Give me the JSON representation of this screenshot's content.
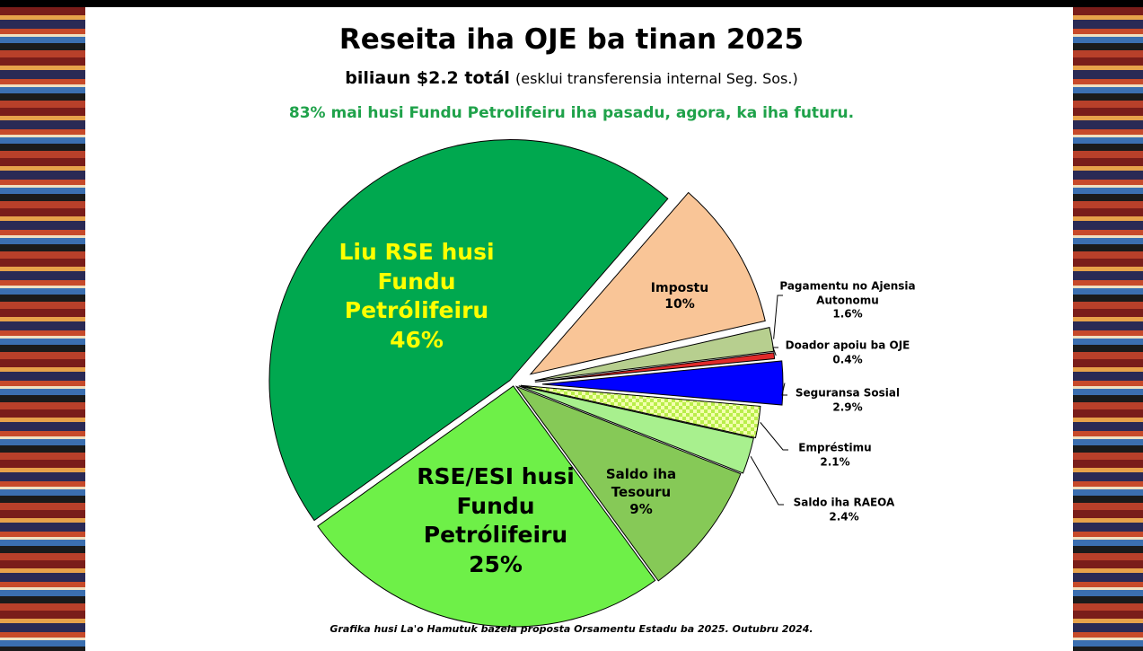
{
  "chart_data": {
    "type": "pie",
    "title": "Reseita iha OJE ba tinan 2025",
    "subtitle_bold": "biliaun $2.2 totál",
    "subtitle_note": "(esklui transferensia internal Seg. Sos.)",
    "highlight": "83% mai husi Fundu Petrolifeiru iha pasadu, agora, ka iha futuru.",
    "footnote": "Grafika husi La'o Hamutuk bazeia proposta Orsamentu Estadu ba 2025. Outubru 2024.",
    "categories": [
      "Impostu",
      "Pagamentu no Ajensia Autonomu",
      "Doador apoiu ba OJE",
      "Seguransa Sosial",
      "Empréstimu",
      "Saldo iha RAEOA",
      "Saldo iha Tesouru",
      "RSE/ESI husi Fundu Petrólifeiru",
      "Liu RSE husi Fundu Petrólifeiru"
    ],
    "values": [
      10,
      1.6,
      0.4,
      2.9,
      2.1,
      2.4,
      9,
      25,
      46
    ],
    "value_labels": [
      "10%",
      "1.6%",
      "0.4%",
      "2.9%",
      "2.1%",
      "2.4%",
      "9%",
      "25%",
      "46%"
    ],
    "colors": [
      "#f9c597",
      "#b7cf8f",
      "#e02a2a",
      "#0000ff",
      "#d4ff7a",
      "#a8f08e",
      "#86c957",
      "#6ef048",
      "#00a84f"
    ]
  }
}
